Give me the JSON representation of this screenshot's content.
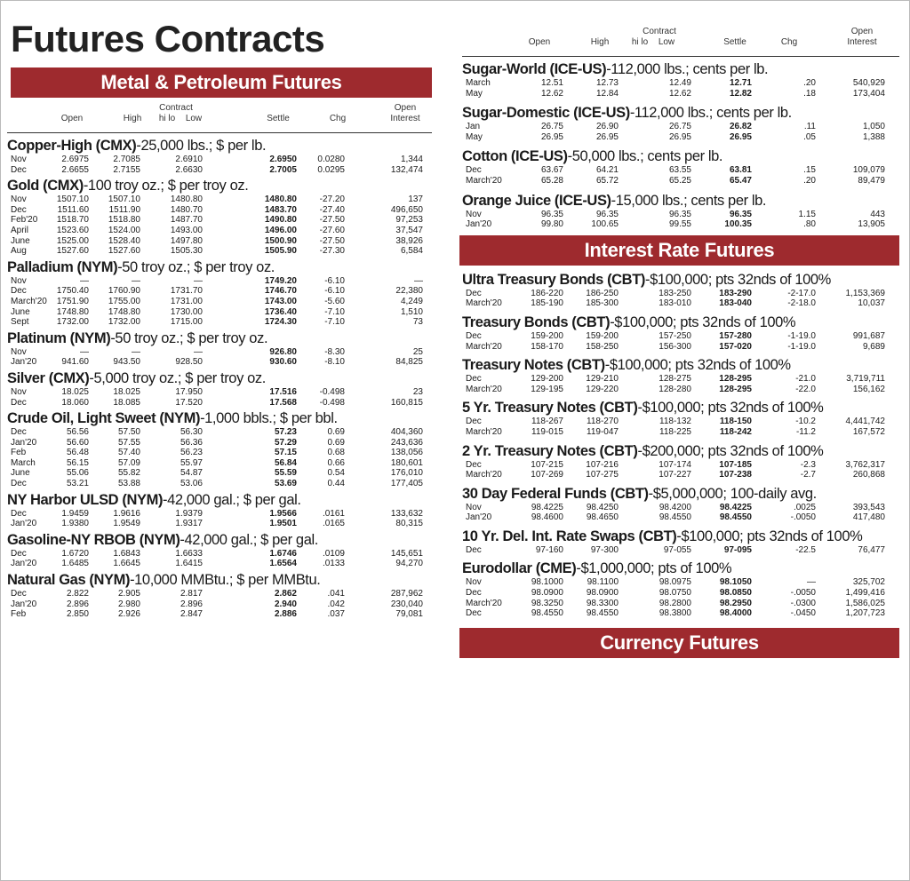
{
  "title": "Futures Contracts",
  "header": {
    "contract": "Contract",
    "open": "Open",
    "high": "High",
    "hilo": "hi lo",
    "low": "Low",
    "settle": "Settle",
    "chg": "Chg",
    "oi_line1": "Open",
    "oi_line2": "Interest"
  },
  "banners": {
    "metal": "Metal & Petroleum Futures",
    "interest": "Interest Rate Futures",
    "currency": "Currency Futures"
  },
  "left": [
    {
      "name": "Copper-High (CMX)",
      "spec": "-25,000 lbs.; $ per lb.",
      "rows": [
        [
          "Nov",
          "2.6975",
          "2.7085",
          "2.6910",
          "2.6950",
          "0.0280",
          "1,344"
        ],
        [
          "Dec",
          "2.6655",
          "2.7155",
          "2.6630",
          "2.7005",
          "0.0295",
          "132,474"
        ]
      ]
    },
    {
      "name": "Gold (CMX)",
      "spec": "-100 troy oz.; $ per troy oz.",
      "rows": [
        [
          "Nov",
          "1507.10",
          "1507.10",
          "1480.80",
          "1480.80",
          "-27.20",
          "137"
        ],
        [
          "Dec",
          "1511.60",
          "1511.90",
          "1480.70",
          "1483.70",
          "-27.40",
          "496,650"
        ],
        [
          "Feb'20",
          "1518.70",
          "1518.80",
          "1487.70",
          "1490.80",
          "-27.50",
          "97,253"
        ],
        [
          "April",
          "1523.60",
          "1524.00",
          "1493.00",
          "1496.00",
          "-27.60",
          "37,547"
        ],
        [
          "June",
          "1525.00",
          "1528.40",
          "1497.80",
          "1500.90",
          "-27.50",
          "38,926"
        ],
        [
          "Aug",
          "1527.60",
          "1527.60",
          "1505.30",
          "1505.90",
          "-27.30",
          "6,584"
        ]
      ]
    },
    {
      "name": "Palladium (NYM)",
      "spec": "-50 troy oz.; $ per troy oz.",
      "rows": [
        [
          "Nov",
          "—",
          "—",
          "—",
          "1749.20",
          "-6.10",
          "—"
        ],
        [
          "Dec",
          "1750.40",
          "1760.90",
          "1731.70",
          "1746.70",
          "-6.10",
          "22,380"
        ],
        [
          "March'20",
          "1751.90",
          "1755.00",
          "1731.00",
          "1743.00",
          "-5.60",
          "4,249"
        ],
        [
          "June",
          "1748.80",
          "1748.80",
          "1730.00",
          "1736.40",
          "-7.10",
          "1,510"
        ],
        [
          "Sept",
          "1732.00",
          "1732.00",
          "1715.00",
          "1724.30",
          "-7.10",
          "73"
        ]
      ]
    },
    {
      "name": "Platinum (NYM)",
      "spec": "-50 troy oz.; $ per troy oz.",
      "rows": [
        [
          "Nov",
          "—",
          "—",
          "—",
          "926.80",
          "-8.30",
          "25"
        ],
        [
          "Jan'20",
          "941.60",
          "943.50",
          "928.50",
          "930.60",
          "-8.10",
          "84,825"
        ]
      ]
    },
    {
      "name": "Silver (CMX)",
      "spec": "-5,000 troy oz.; $ per troy oz.",
      "rows": [
        [
          "Nov",
          "18.025",
          "18.025",
          "17.950",
          "17.516",
          "-0.498",
          "23"
        ],
        [
          "Dec",
          "18.060",
          "18.085",
          "17.520",
          "17.568",
          "-0.498",
          "160,815"
        ]
      ]
    },
    {
      "name": "Crude Oil, Light Sweet (NYM)",
      "spec": "-1,000 bbls.; $ per bbl.",
      "rows": [
        [
          "Dec",
          "56.56",
          "57.50",
          "56.30",
          "57.23",
          "0.69",
          "404,360"
        ],
        [
          "Jan'20",
          "56.60",
          "57.55",
          "56.36",
          "57.29",
          "0.69",
          "243,636"
        ],
        [
          "Feb",
          "56.48",
          "57.40",
          "56.23",
          "57.15",
          "0.68",
          "138,056"
        ],
        [
          "March",
          "56.15",
          "57.09",
          "55.97",
          "56.84",
          "0.66",
          "180,601"
        ],
        [
          "June",
          "55.06",
          "55.82",
          "54.87",
          "55.59",
          "0.54",
          "176,010"
        ],
        [
          "Dec",
          "53.21",
          "53.88",
          "53.06",
          "53.69",
          "0.44",
          "177,405"
        ]
      ]
    },
    {
      "name": "NY Harbor ULSD (NYM)",
      "spec": "-42,000 gal.; $ per gal.",
      "rows": [
        [
          "Dec",
          "1.9459",
          "1.9616",
          "1.9379",
          "1.9566",
          ".0161",
          "133,632"
        ],
        [
          "Jan'20",
          "1.9380",
          "1.9549",
          "1.9317",
          "1.9501",
          ".0165",
          "80,315"
        ]
      ]
    },
    {
      "name": "Gasoline-NY RBOB (NYM)",
      "spec": "-42,000 gal.; $ per gal.",
      "rows": [
        [
          "Dec",
          "1.6720",
          "1.6843",
          "1.6633",
          "1.6746",
          ".0109",
          "145,651"
        ],
        [
          "Jan'20",
          "1.6485",
          "1.6645",
          "1.6415",
          "1.6564",
          ".0133",
          "94,270"
        ]
      ]
    },
    {
      "name": "Natural Gas (NYM)",
      "spec": "-10,000 MMBtu.; $ per MMBtu.",
      "rows": [
        [
          "Dec",
          "2.822",
          "2.905",
          "2.817",
          "2.862",
          ".041",
          "287,962"
        ],
        [
          "Jan'20",
          "2.896",
          "2.980",
          "2.896",
          "2.940",
          ".042",
          "230,040"
        ],
        [
          "Feb",
          "2.850",
          "2.926",
          "2.847",
          "2.886",
          ".037",
          "79,081"
        ]
      ]
    }
  ],
  "right_top": [
    {
      "name": "Sugar-World (ICE-US)",
      "spec": "-112,000 lbs.; cents per lb.",
      "rows": [
        [
          "March",
          "12.51",
          "12.73",
          "12.49",
          "12.71",
          ".20",
          "540,929"
        ],
        [
          "May",
          "12.62",
          "12.84",
          "12.62",
          "12.82",
          ".18",
          "173,404"
        ]
      ]
    },
    {
      "name": "Sugar-Domestic (ICE-US)",
      "spec": "-112,000 lbs.; cents per lb.",
      "rows": [
        [
          "Jan",
          "26.75",
          "26.90",
          "26.75",
          "26.82",
          ".11",
          "1,050"
        ],
        [
          "May",
          "26.95",
          "26.95",
          "26.95",
          "26.95",
          ".05",
          "1,388"
        ]
      ]
    },
    {
      "name": "Cotton (ICE-US)",
      "spec": "-50,000 lbs.; cents per lb.",
      "rows": [
        [
          "Dec",
          "63.67",
          "64.21",
          "63.55",
          "63.81",
          ".15",
          "109,079"
        ],
        [
          "March'20",
          "65.28",
          "65.72",
          "65.25",
          "65.47",
          ".20",
          "89,479"
        ]
      ]
    },
    {
      "name": "Orange Juice (ICE-US)",
      "spec": "-15,000 lbs.; cents per lb.",
      "rows": [
        [
          "Nov",
          "96.35",
          "96.35",
          "96.35",
          "96.35",
          "1.15",
          "443"
        ],
        [
          "Jan'20",
          "99.80",
          "100.65",
          "99.55",
          "100.35",
          ".80",
          "13,905"
        ]
      ]
    }
  ],
  "right_rates": [
    {
      "name": "Ultra Treasury Bonds (CBT)",
      "spec": "-$100,000; pts 32nds of 100%",
      "rows": [
        [
          "Dec",
          "186-220",
          "186-250",
          "183-250",
          "183-290",
          "-2-17.0",
          "1,153,369"
        ],
        [
          "March'20",
          "185-190",
          "185-300",
          "183-010",
          "183-040",
          "-2-18.0",
          "10,037"
        ]
      ]
    },
    {
      "name": "Treasury Bonds (CBT)",
      "spec": "-$100,000; pts 32nds of 100%",
      "rows": [
        [
          "Dec",
          "159-200",
          "159-200",
          "157-250",
          "157-280",
          "-1-19.0",
          "991,687"
        ],
        [
          "March'20",
          "158-170",
          "158-250",
          "156-300",
          "157-020",
          "-1-19.0",
          "9,689"
        ]
      ]
    },
    {
      "name": "Treasury Notes (CBT)",
      "spec": "-$100,000; pts 32nds of 100%",
      "rows": [
        [
          "Dec",
          "129-200",
          "129-210",
          "128-275",
          "128-295",
          "-21.0",
          "3,719,711"
        ],
        [
          "March'20",
          "129-195",
          "129-220",
          "128-280",
          "128-295",
          "-22.0",
          "156,162"
        ]
      ]
    },
    {
      "name": "5 Yr. Treasury Notes (CBT)",
      "spec": "-$100,000; pts 32nds of 100%",
      "rows": [
        [
          "Dec",
          "118-267",
          "118-270",
          "118-132",
          "118-150",
          "-10.2",
          "4,441,742"
        ],
        [
          "March'20",
          "119-015",
          "119-047",
          "118-225",
          "118-242",
          "-11.2",
          "167,572"
        ]
      ]
    },
    {
      "name": "2 Yr. Treasury Notes (CBT)",
      "spec": "-$200,000; pts 32nds of 100%",
      "rows": [
        [
          "Dec",
          "107-215",
          "107-216",
          "107-174",
          "107-185",
          "-2.3",
          "3,762,317"
        ],
        [
          "March'20",
          "107-269",
          "107-275",
          "107-227",
          "107-238",
          "-2.7",
          "260,868"
        ]
      ]
    },
    {
      "name": "30 Day Federal Funds (CBT)",
      "spec": "-$5,000,000; 100-daily avg.",
      "rows": [
        [
          "Nov",
          "98.4225",
          "98.4250",
          "98.4200",
          "98.4225",
          ".0025",
          "393,543"
        ],
        [
          "Jan'20",
          "98.4600",
          "98.4650",
          "98.4550",
          "98.4550",
          "-.0050",
          "417,480"
        ]
      ]
    },
    {
      "name": "10 Yr. Del. Int. Rate Swaps (CBT)",
      "spec": "-$100,000; pts 32nds of 100%",
      "rows": [
        [
          "Dec",
          "97-160",
          "97-300",
          "97-055",
          "97-095",
          "-22.5",
          "76,477"
        ]
      ]
    },
    {
      "name": "Eurodollar (CME)",
      "spec": "-$1,000,000; pts of 100%",
      "rows": [
        [
          "Nov",
          "98.1000",
          "98.1100",
          "98.0975",
          "98.1050",
          "—",
          "325,702"
        ],
        [
          "Dec",
          "98.0900",
          "98.0900",
          "98.0750",
          "98.0850",
          "-.0050",
          "1,499,416"
        ],
        [
          "March'20",
          "98.3250",
          "98.3300",
          "98.2800",
          "98.2950",
          "-.0300",
          "1,586,025"
        ],
        [
          "Dec",
          "98.4550",
          "98.4550",
          "98.3800",
          "98.4000",
          "-.0450",
          "1,207,723"
        ]
      ]
    }
  ]
}
